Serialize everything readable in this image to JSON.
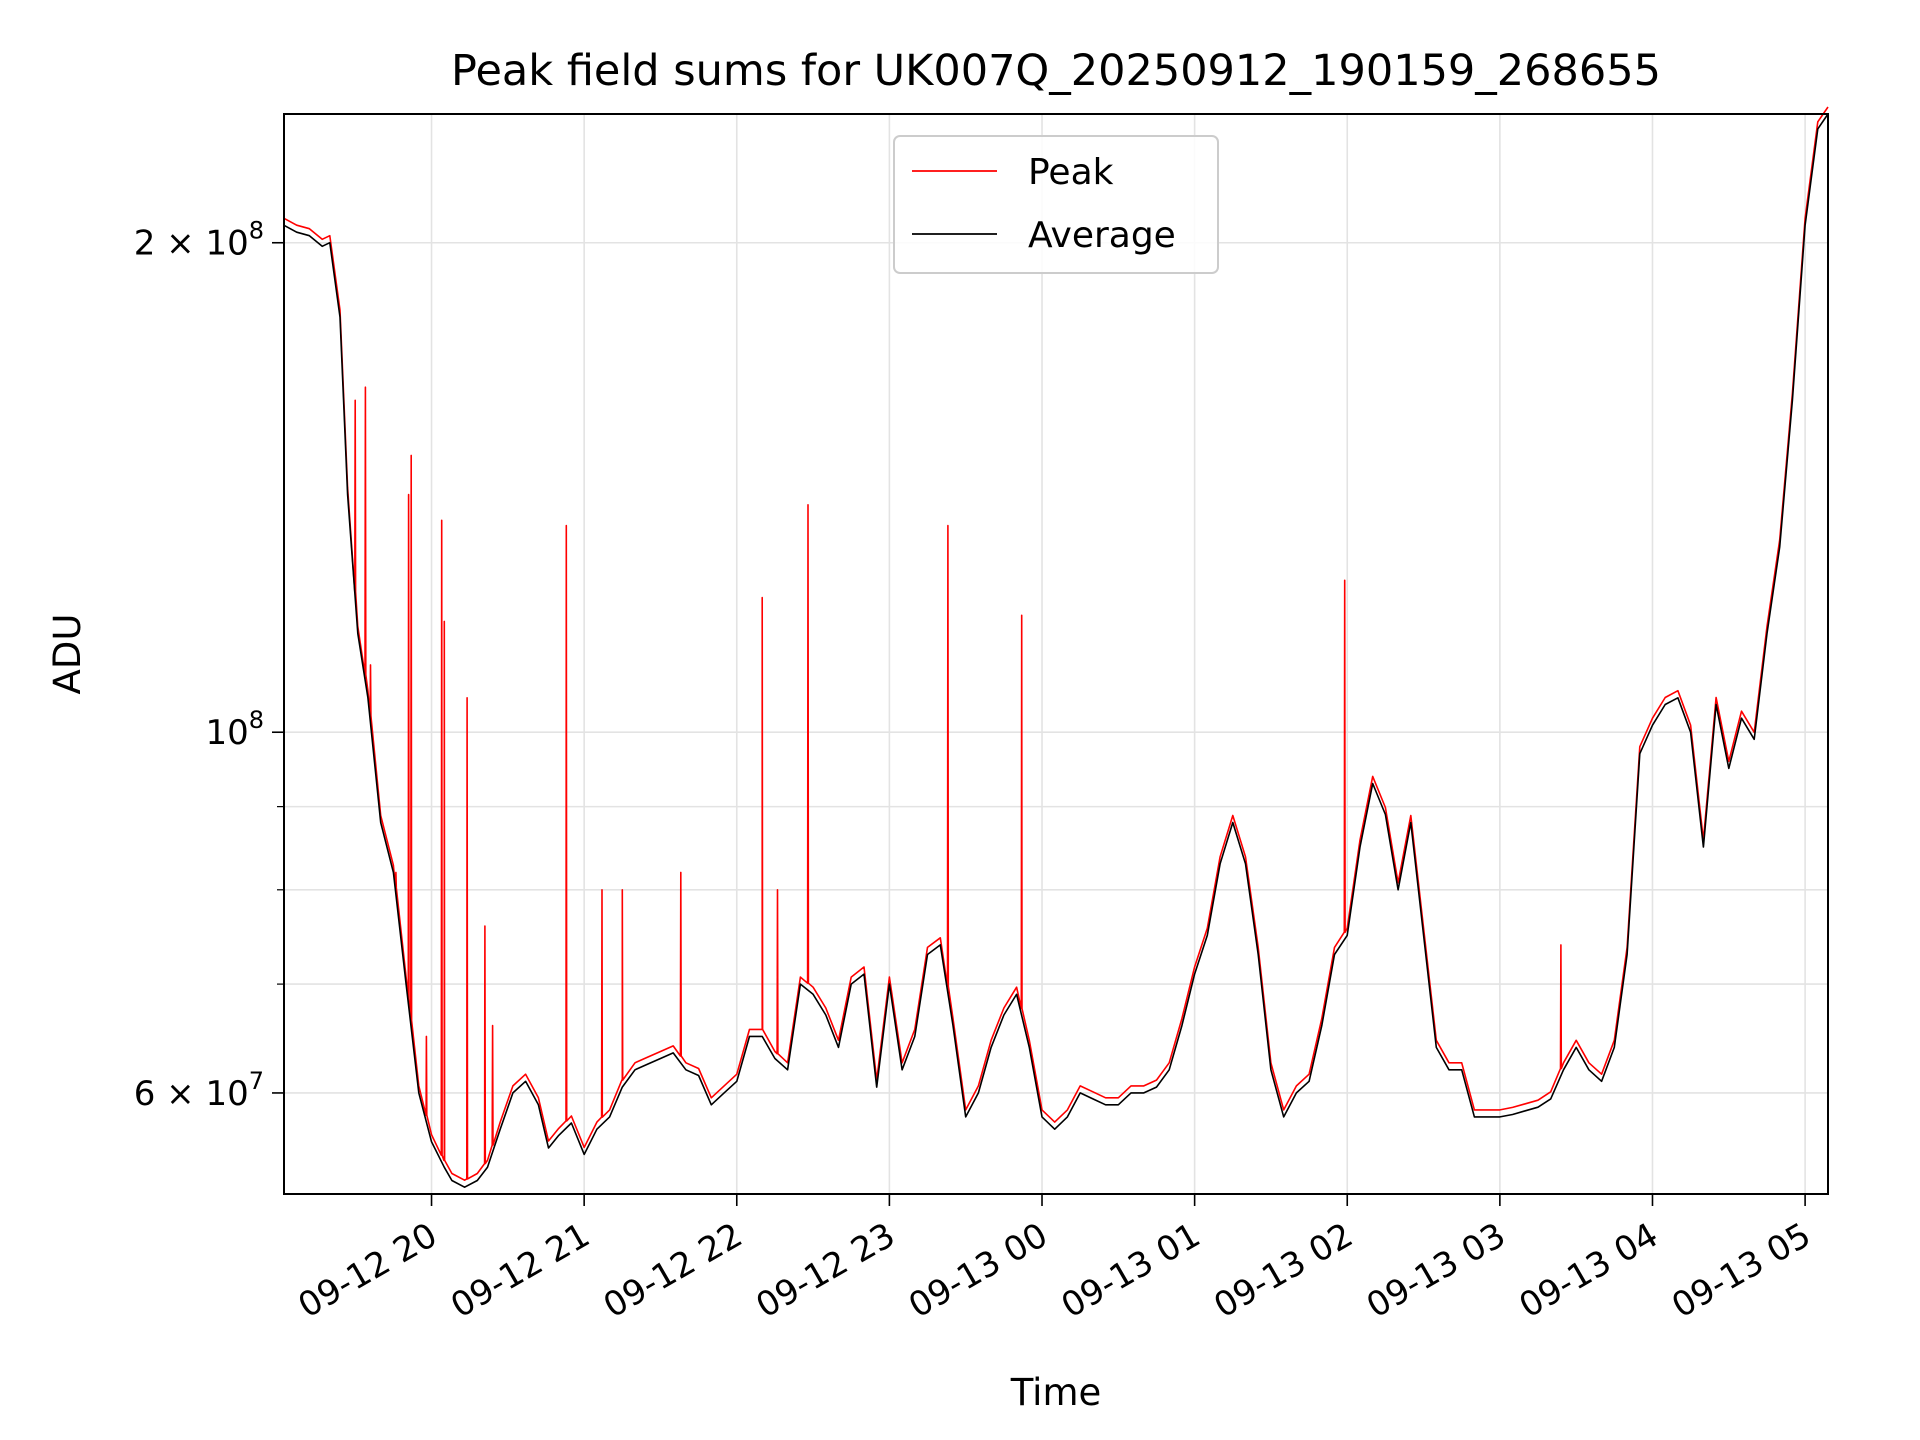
{
  "chart_data": {
    "type": "line",
    "title": "Peak field sums for UK007Q_20250912_190159_268655",
    "xlabel": "Time",
    "ylabel": "ADU",
    "yscale": "log",
    "grid": true,
    "legend_placement": "upper-center",
    "xlim": [
      "09-12 19:02",
      "09-13 05:09"
    ],
    "ylim": [
      52000000,
      240000000
    ],
    "x_ticks": [
      {
        "value": "09-12 20:00",
        "label": "09-12 20"
      },
      {
        "value": "09-12 21:00",
        "label": "09-12 21"
      },
      {
        "value": "09-12 22:00",
        "label": "09-12 22"
      },
      {
        "value": "09-12 23:00",
        "label": "09-12 23"
      },
      {
        "value": "09-13 00:00",
        "label": "09-13 00"
      },
      {
        "value": "09-13 01:00",
        "label": "09-13 01"
      },
      {
        "value": "09-13 02:00",
        "label": "09-13 02"
      },
      {
        "value": "09-13 03:00",
        "label": "09-13 03"
      },
      {
        "value": "09-13 04:00",
        "label": "09-13 04"
      },
      {
        "value": "09-13 05:00",
        "label": "09-13 05"
      }
    ],
    "y_ticks_major": [
      {
        "value": 60000000,
        "label": "6 × 10⁷",
        "mant": "6",
        "exp": "7"
      },
      {
        "value": 100000000,
        "label": "10⁸",
        "mant": "",
        "exp": "8"
      },
      {
        "value": 200000000,
        "label": "2 × 10⁸",
        "mant": "2",
        "exp": "8"
      }
    ],
    "y_ticks_minor": [
      70000000,
      80000000,
      90000000
    ],
    "series": [
      {
        "name": "Average",
        "color": "#000000",
        "x": [
          "09-12 19:02",
          "09-12 19:07",
          "09-12 19:12",
          "09-12 19:17",
          "09-12 19:20",
          "09-12 19:24",
          "09-12 19:27",
          "09-12 19:31",
          "09-12 19:35",
          "09-12 19:40",
          "09-12 19:45",
          "09-12 19:50",
          "09-12 19:55",
          "09-12 20:00",
          "09-12 20:05",
          "09-12 20:08",
          "09-12 20:13",
          "09-12 20:18",
          "09-12 20:22",
          "09-12 20:27",
          "09-12 20:32",
          "09-12 20:37",
          "09-12 20:42",
          "09-12 20:46",
          "09-12 20:50",
          "09-12 20:55",
          "09-12 21:00",
          "09-12 21:05",
          "09-12 21:10",
          "09-12 21:15",
          "09-12 21:20",
          "09-12 21:25",
          "09-12 21:30",
          "09-12 21:35",
          "09-12 21:40",
          "09-12 21:45",
          "09-12 21:50",
          "09-12 21:55",
          "09-12 22:00",
          "09-12 22:05",
          "09-12 22:10",
          "09-12 22:15",
          "09-12 22:20",
          "09-12 22:25",
          "09-12 22:30",
          "09-12 22:35",
          "09-12 22:40",
          "09-12 22:45",
          "09-12 22:50",
          "09-12 22:55",
          "09-12 23:00",
          "09-12 23:05",
          "09-12 23:10",
          "09-12 23:15",
          "09-12 23:20",
          "09-12 23:25",
          "09-12 23:30",
          "09-12 23:35",
          "09-12 23:40",
          "09-12 23:45",
          "09-12 23:50",
          "09-12 23:55",
          "09-13 00:00",
          "09-13 00:05",
          "09-13 00:10",
          "09-13 00:15",
          "09-13 00:20",
          "09-13 00:25",
          "09-13 00:30",
          "09-13 00:35",
          "09-13 00:40",
          "09-13 00:45",
          "09-13 00:50",
          "09-13 00:55",
          "09-13 01:00",
          "09-13 01:05",
          "09-13 01:10",
          "09-13 01:15",
          "09-13 01:20",
          "09-13 01:25",
          "09-13 01:30",
          "09-13 01:35",
          "09-13 01:40",
          "09-13 01:45",
          "09-13 01:50",
          "09-13 01:55",
          "09-13 02:00",
          "09-13 02:05",
          "09-13 02:10",
          "09-13 02:15",
          "09-13 02:20",
          "09-13 02:25",
          "09-13 02:30",
          "09-13 02:35",
          "09-13 02:40",
          "09-13 02:45",
          "09-13 02:50",
          "09-13 02:55",
          "09-13 03:00",
          "09-13 03:05",
          "09-13 03:10",
          "09-13 03:15",
          "09-13 03:20",
          "09-13 03:25",
          "09-13 03:30",
          "09-13 03:35",
          "09-13 03:40",
          "09-13 03:45",
          "09-13 03:50",
          "09-13 03:55",
          "09-13 04:00",
          "09-13 04:05",
          "09-13 04:10",
          "09-13 04:15",
          "09-13 04:20",
          "09-13 04:25",
          "09-13 04:30",
          "09-13 04:35",
          "09-13 04:40",
          "09-13 04:45",
          "09-13 04:50",
          "09-13 04:55",
          "09-13 05:00",
          "09-13 05:05",
          "09-13 05:09"
        ],
        "y": [
          205000000,
          203000000,
          202000000,
          199000000,
          200000000,
          180000000,
          140000000,
          115000000,
          105000000,
          88000000,
          82000000,
          70000000,
          60000000,
          56000000,
          54000000,
          53000000,
          52500000,
          53000000,
          54000000,
          57000000,
          60000000,
          61000000,
          59000000,
          55500000,
          56500000,
          57500000,
          55000000,
          57000000,
          58000000,
          60500000,
          62000000,
          62500000,
          63000000,
          63500000,
          62000000,
          61500000,
          59000000,
          60000000,
          61000000,
          65000000,
          65000000,
          63000000,
          62000000,
          70000000,
          69000000,
          67000000,
          64000000,
          70000000,
          71000000,
          60500000,
          70000000,
          62000000,
          65000000,
          73000000,
          74000000,
          66000000,
          58000000,
          60000000,
          64000000,
          67000000,
          69000000,
          64000000,
          58000000,
          57000000,
          58000000,
          60000000,
          59500000,
          59000000,
          59000000,
          60000000,
          60000000,
          60500000,
          62000000,
          66000000,
          71000000,
          75000000,
          83000000,
          88000000,
          83000000,
          73000000,
          62000000,
          58000000,
          60000000,
          61000000,
          66000000,
          73000000,
          75000000,
          85000000,
          93000000,
          89000000,
          80000000,
          88000000,
          75000000,
          64000000,
          62000000,
          62000000,
          58000000,
          58000000,
          58000000,
          58200000,
          58500000,
          58800000,
          59500000,
          62000000,
          64000000,
          62000000,
          61000000,
          64000000,
          73000000,
          97000000,
          101000000,
          104000000,
          105000000,
          100000000,
          85000000,
          104000000,
          95000000,
          102000000,
          99000000,
          115000000,
          130000000,
          160000000,
          205000000,
          235000000,
          240000000
        ]
      },
      {
        "name": "Peak",
        "color": "#ff0000",
        "spikes": [
          {
            "x": "09-12 19:30",
            "y": 160000000
          },
          {
            "x": "09-12 19:34",
            "y": 163000000
          },
          {
            "x": "09-12 19:36",
            "y": 110000000
          },
          {
            "x": "09-12 19:46",
            "y": 82000000
          },
          {
            "x": "09-12 19:51",
            "y": 140000000
          },
          {
            "x": "09-12 19:52",
            "y": 148000000
          },
          {
            "x": "09-12 19:58",
            "y": 65000000
          },
          {
            "x": "09-12 20:04",
            "y": 135000000
          },
          {
            "x": "09-12 20:05",
            "y": 117000000
          },
          {
            "x": "09-12 20:14",
            "y": 105000000
          },
          {
            "x": "09-12 20:21",
            "y": 76000000
          },
          {
            "x": "09-12 20:24",
            "y": 66000000
          },
          {
            "x": "09-12 20:53",
            "y": 134000000
          },
          {
            "x": "09-12 21:07",
            "y": 80000000
          },
          {
            "x": "09-12 21:15",
            "y": 80000000
          },
          {
            "x": "09-12 21:38",
            "y": 82000000
          },
          {
            "x": "09-12 22:10",
            "y": 121000000
          },
          {
            "x": "09-12 22:16",
            "y": 80000000
          },
          {
            "x": "09-12 22:28",
            "y": 138000000
          },
          {
            "x": "09-12 23:23",
            "y": 134000000
          },
          {
            "x": "09-12 23:52",
            "y": 118000000
          },
          {
            "x": "09-13 01:59",
            "y": 124000000
          },
          {
            "x": "09-13 03:24",
            "y": 74000000
          }
        ]
      }
    ]
  },
  "legend": {
    "items": [
      {
        "label": "Peak",
        "color": "#ff0000"
      },
      {
        "label": "Average",
        "color": "#000000"
      }
    ]
  }
}
